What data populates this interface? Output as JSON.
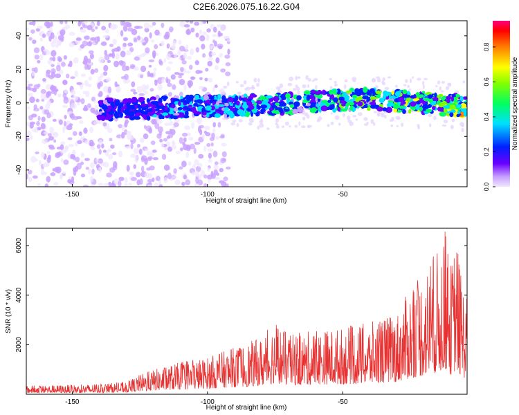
{
  "chart_data": [
    {
      "type": "heatmap",
      "title": "C2E6.2026.075.16.22.G04",
      "xlabel": "Height of straight line (km)",
      "ylabel": "Frequency (Hz)",
      "xlim": [
        -167,
        -4
      ],
      "ylim": [
        -50,
        49
      ],
      "xticks": [
        -150,
        -100,
        -50
      ],
      "yticks": [
        -40,
        -20,
        0,
        20,
        40
      ],
      "colorbar": {
        "label": "Normalized spectral amplitude",
        "range": [
          0,
          0.95
        ],
        "ticks": [
          0.0,
          0.2,
          0.4,
          0.6,
          0.8
        ]
      },
      "ridge": {
        "description_values": "frequency ridge center vs height",
        "x": [
          -140,
          -120,
          -100,
          -80,
          -60,
          -40,
          -20,
          -4
        ],
        "frequency": [
          -4,
          -3,
          -2,
          -1,
          1,
          2,
          0,
          -2
        ]
      }
    },
    {
      "type": "line",
      "xlabel": "Height of straight line (km)",
      "ylabel": "SNR (10 * v/v)",
      "xlim": [
        -167,
        -4
      ],
      "ylim": [
        0,
        6700
      ],
      "xticks": [
        -150,
        -100,
        -50
      ],
      "yticks": [
        2000,
        4000,
        6000
      ],
      "series": [
        {
          "name": "SNR",
          "color": "#e83232",
          "envelope_x": [
            -167,
            -150,
            -140,
            -130,
            -125,
            -120,
            -110,
            -100,
            -90,
            -80,
            -75,
            -70,
            -60,
            -50,
            -40,
            -30,
            -25,
            -20,
            -15,
            -12,
            -10,
            -8,
            -6,
            -4
          ],
          "envelope_max": [
            350,
            380,
            420,
            500,
            800,
            1000,
            1300,
            1500,
            1900,
            2300,
            3000,
            2400,
            2600,
            2700,
            2900,
            3300,
            4300,
            5000,
            5800,
            6700,
            5200,
            6500,
            4600,
            4200
          ]
        }
      ]
    }
  ],
  "colors": {
    "line": "#e83232",
    "axis": "#000000",
    "background": "#ffffff"
  }
}
